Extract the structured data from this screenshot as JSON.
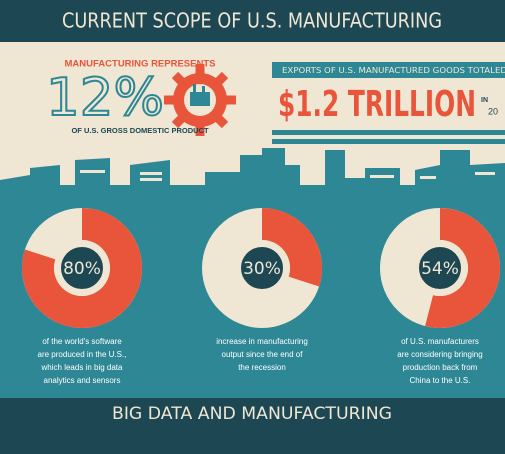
{
  "header": {
    "title": "CURRENT SCOPE OF U.S. MANUFACTURING"
  },
  "gdp": {
    "lead": "MANUFACTURING REPRESENTS",
    "value": "12%",
    "caption": "OF U.S. GROSS DOMESTIC PRODUCT"
  },
  "exports": {
    "lead": "EXPORTS OF U.S. MANUFACTURED GOODS TOTALED",
    "value": "$1.2 TRILLION",
    "note": [
      "IN",
      "20"
    ]
  },
  "stats": [
    {
      "value": 80,
      "label": "80%",
      "lines": [
        "of the world's software",
        "are produced in the U.S.,",
        "which leads in big data",
        "analytics and sensors"
      ]
    },
    {
      "value": 30,
      "label": "30%",
      "lines": [
        "increase in manufacturing",
        "output since the end of",
        "the recession"
      ]
    },
    {
      "value": 54,
      "label": "54%",
      "lines": [
        "of U.S. manufacturers",
        "are considering bringing",
        "production back from",
        "China to the U.S."
      ]
    }
  ],
  "footer": {
    "title": "BIG DATA AND MANUFACTURING"
  }
}
